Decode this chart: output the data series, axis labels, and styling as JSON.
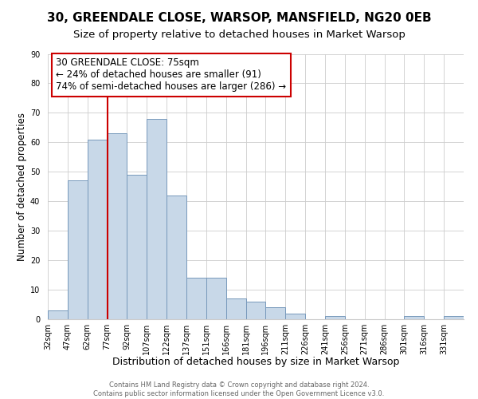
{
  "title": "30, GREENDALE CLOSE, WARSOP, MANSFIELD, NG20 0EB",
  "subtitle": "Size of property relative to detached houses in Market Warsop",
  "xlabel": "Distribution of detached houses by size in Market Warsop",
  "ylabel": "Number of detached properties",
  "bin_labels": [
    "32sqm",
    "47sqm",
    "62sqm",
    "77sqm",
    "92sqm",
    "107sqm",
    "122sqm",
    "137sqm",
    "151sqm",
    "166sqm",
    "181sqm",
    "196sqm",
    "211sqm",
    "226sqm",
    "241sqm",
    "256sqm",
    "271sqm",
    "286sqm",
    "301sqm",
    "316sqm",
    "331sqm"
  ],
  "bar_values": [
    3,
    47,
    61,
    63,
    49,
    68,
    42,
    14,
    14,
    7,
    6,
    4,
    2,
    0,
    1,
    0,
    0,
    0,
    1,
    0,
    1
  ],
  "bar_color": "#c8d8e8",
  "bar_edge_color": "#7799bb",
  "grid_color": "#cccccc",
  "vline_x": 3,
  "vline_color": "#cc0000",
  "annotation_text_line1": "30 GREENDALE CLOSE: 75sqm",
  "annotation_text_line2": "← 24% of detached houses are smaller (91)",
  "annotation_text_line3": "74% of semi-detached houses are larger (286) →",
  "annotation_box_color": "#cc0000",
  "ylim": [
    0,
    90
  ],
  "footer_line1": "Contains HM Land Registry data © Crown copyright and database right 2024.",
  "footer_line2": "Contains public sector information licensed under the Open Government Licence v3.0.",
  "background_color": "#ffffff",
  "title_fontsize": 11,
  "subtitle_fontsize": 9.5,
  "xlabel_fontsize": 9,
  "ylabel_fontsize": 8.5,
  "tick_fontsize": 7,
  "annotation_fontsize": 8.5,
  "footer_fontsize": 6
}
